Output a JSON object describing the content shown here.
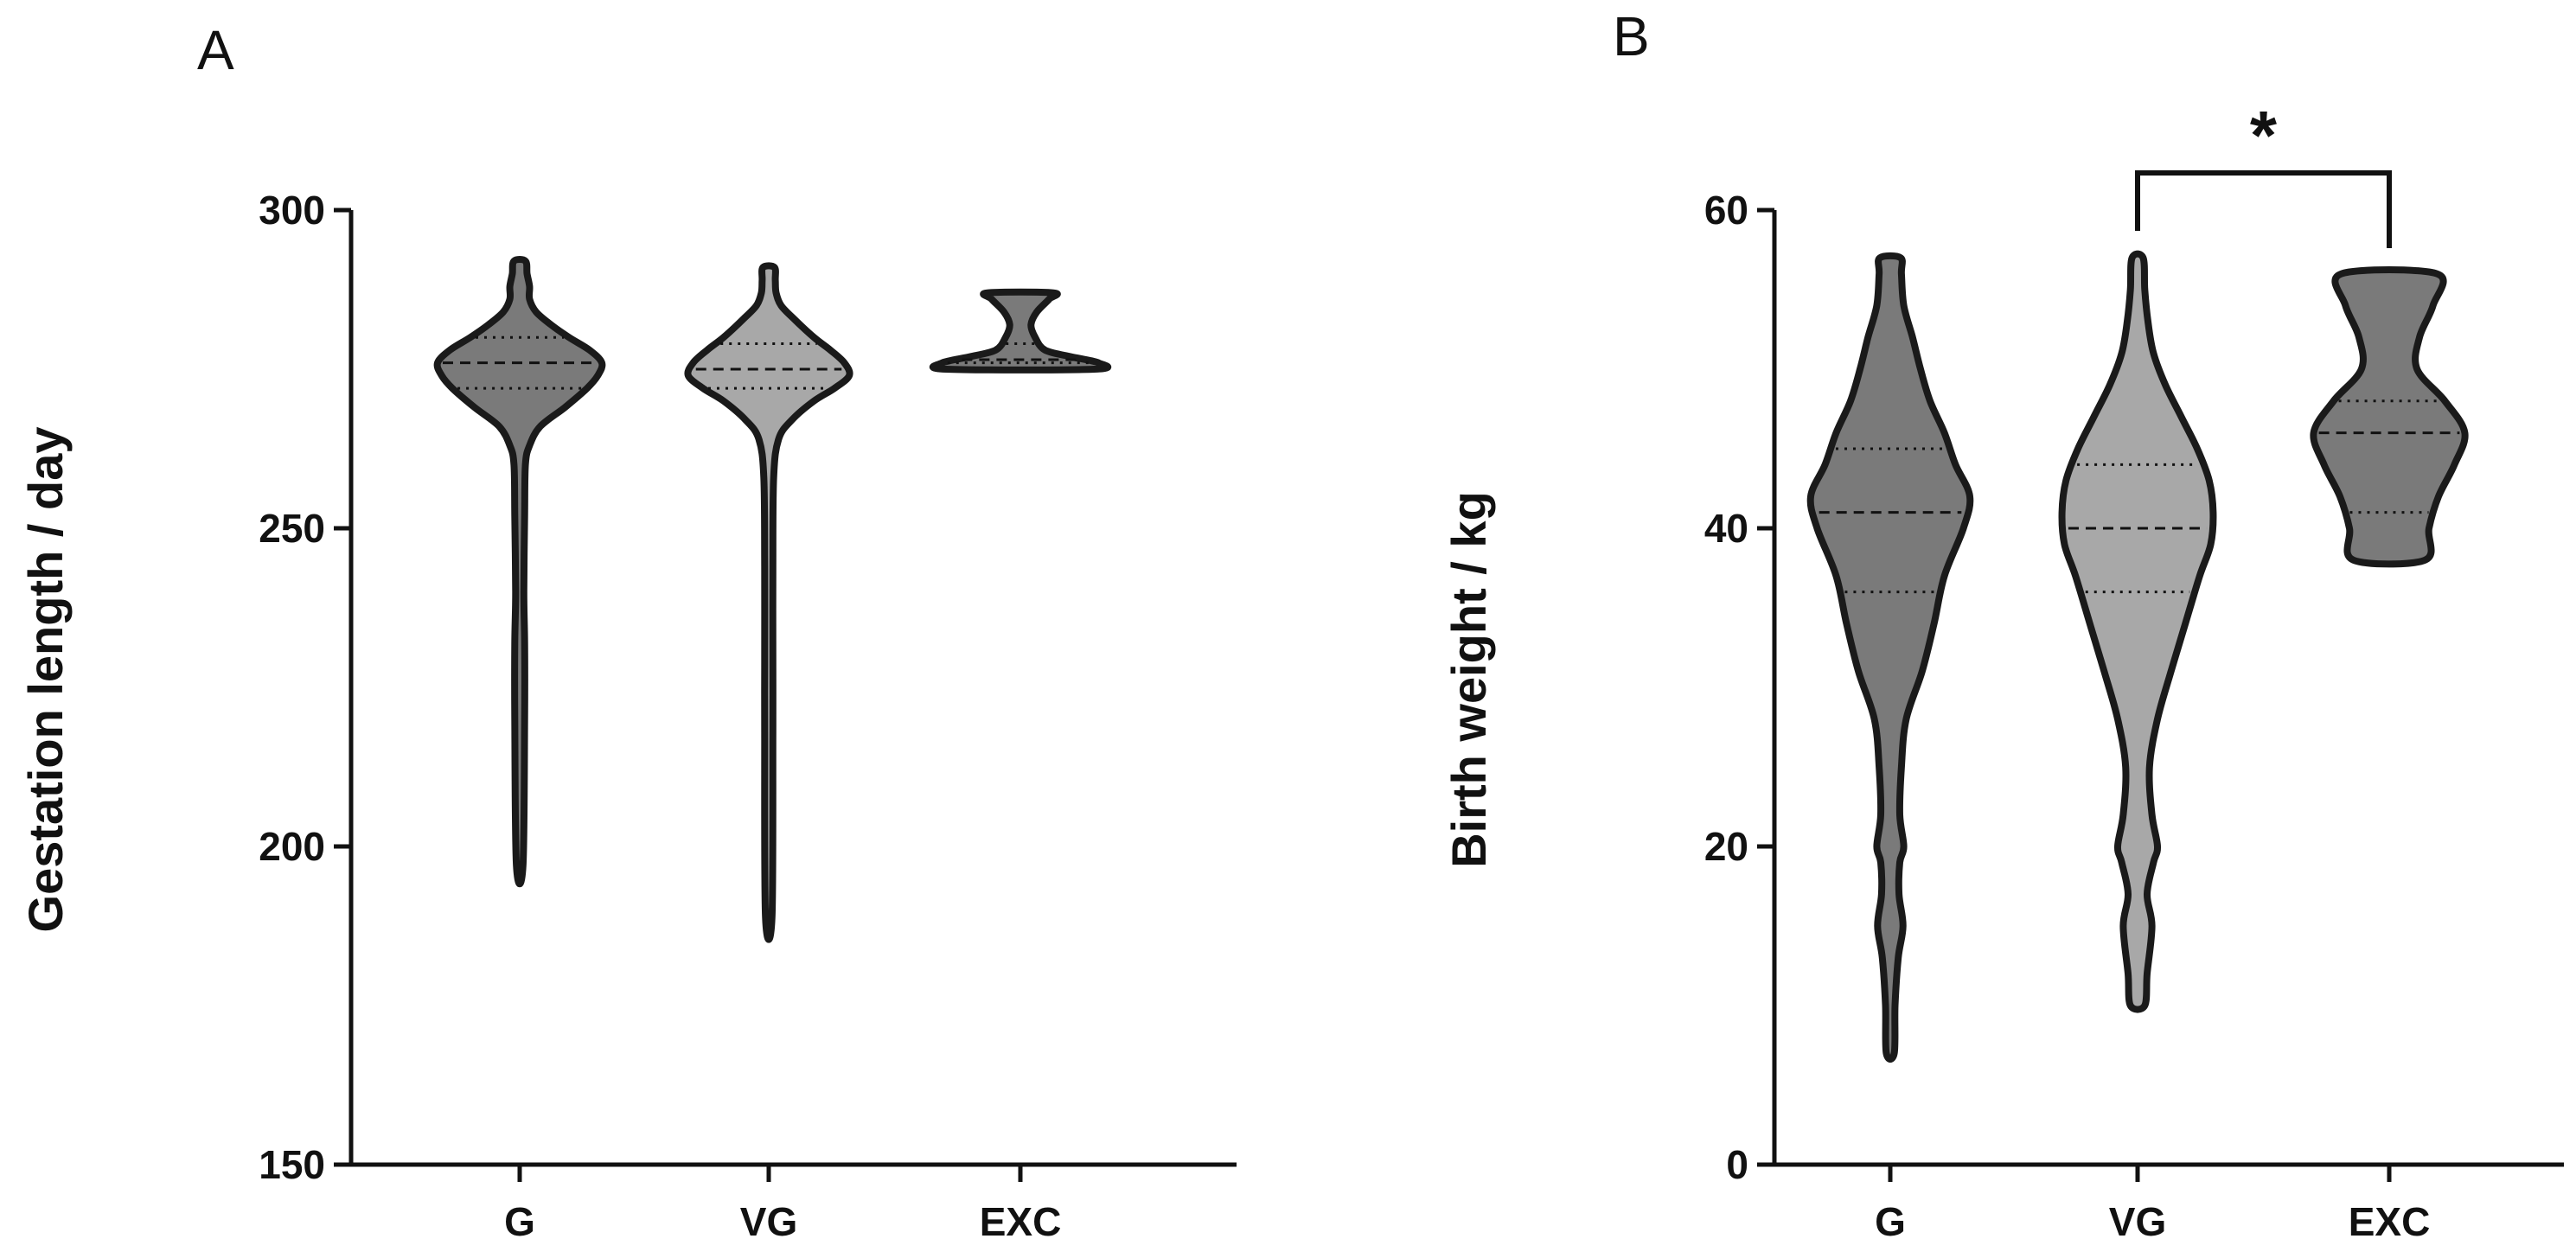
{
  "chart_data": [
    {
      "panel": "A",
      "type": "violin",
      "title": "",
      "xlabel": "",
      "ylabel": "Gestation length / day",
      "ylim": [
        150,
        300
      ],
      "yticks": [
        "150",
        "200",
        "250",
        "300"
      ],
      "ytick_values": [
        150,
        200,
        250,
        300
      ],
      "categories": [
        "G",
        "VG",
        "EXC"
      ],
      "grid": false,
      "series": [
        {
          "name": "G",
          "fill": "#7a7a7a",
          "min": 197,
          "max": 292,
          "median": 276,
          "q1": 272,
          "q3": 280,
          "profile": [
            [
              197,
              0.04
            ],
            [
              220,
              0.06
            ],
            [
              232,
              0.06
            ],
            [
              240,
              0.05
            ],
            [
              252,
              0.06
            ],
            [
              260,
              0.07
            ],
            [
              263,
              0.12
            ],
            [
              266,
              0.25
            ],
            [
              269,
              0.55
            ],
            [
              272,
              0.82
            ],
            [
              274,
              0.95
            ],
            [
              276,
              1.0
            ],
            [
              278,
              0.85
            ],
            [
              280,
              0.6
            ],
            [
              282,
              0.38
            ],
            [
              284,
              0.2
            ],
            [
              286,
              0.12
            ],
            [
              288,
              0.12
            ],
            [
              290,
              0.09
            ],
            [
              292,
              0.07
            ]
          ]
        },
        {
          "name": "VG",
          "fill": "#a8a8a8",
          "min": 189,
          "max": 291,
          "median": 275,
          "q1": 272,
          "q3": 279,
          "profile": [
            [
              189,
              0.04
            ],
            [
              218,
              0.05
            ],
            [
              228,
              0.05
            ],
            [
              244,
              0.05
            ],
            [
              258,
              0.06
            ],
            [
              264,
              0.12
            ],
            [
              267,
              0.28
            ],
            [
              270,
              0.55
            ],
            [
              272,
              0.8
            ],
            [
              274,
              0.98
            ],
            [
              276,
              0.92
            ],
            [
              278,
              0.75
            ],
            [
              280,
              0.55
            ],
            [
              283,
              0.3
            ],
            [
              285,
              0.15
            ],
            [
              287,
              0.09
            ],
            [
              289,
              0.08
            ],
            [
              291,
              0.07
            ]
          ]
        },
        {
          "name": "EXC",
          "fill": "#7a7a7a",
          "min": 275,
          "max": 287,
          "median": 276.5,
          "q1": 276,
          "q3": 279,
          "profile": [
            [
              275,
              0.9
            ],
            [
              276,
              0.95
            ],
            [
              277,
              0.6
            ],
            [
              278,
              0.3
            ],
            [
              280,
              0.18
            ],
            [
              282,
              0.13
            ],
            [
              284,
              0.2
            ],
            [
              286,
              0.35
            ],
            [
              287,
              0.4
            ]
          ]
        }
      ]
    },
    {
      "panel": "B",
      "type": "violin",
      "title": "",
      "xlabel": "",
      "ylabel": "Birth weight / kg",
      "ylim": [
        0,
        60
      ],
      "yticks": [
        "0",
        "20",
        "40",
        "60"
      ],
      "ytick_values": [
        0,
        20,
        40,
        60
      ],
      "categories": [
        "G",
        "VG",
        "EXC"
      ],
      "grid": false,
      "annotations": [
        {
          "type": "significance-bracket",
          "from": "VG",
          "to": "EXC",
          "label": "*"
        }
      ],
      "series": [
        {
          "name": "G",
          "fill": "#7a7a7a",
          "min": 7,
          "max": 57,
          "median": 41,
          "q1": 36,
          "q3": 45,
          "profile": [
            [
              7,
              0.05
            ],
            [
              10,
              0.06
            ],
            [
              13,
              0.1
            ],
            [
              15,
              0.16
            ],
            [
              17,
              0.11
            ],
            [
              19,
              0.12
            ],
            [
              20,
              0.17
            ],
            [
              22,
              0.12
            ],
            [
              25,
              0.14
            ],
            [
              28,
              0.2
            ],
            [
              31,
              0.4
            ],
            [
              34,
              0.55
            ],
            [
              37,
              0.68
            ],
            [
              40,
              0.92
            ],
            [
              42,
              1.0
            ],
            [
              44,
              0.82
            ],
            [
              46,
              0.68
            ],
            [
              48,
              0.5
            ],
            [
              50,
              0.38
            ],
            [
              52,
              0.28
            ],
            [
              54,
              0.17
            ],
            [
              56,
              0.14
            ],
            [
              57,
              0.13
            ]
          ]
        },
        {
          "name": "VG",
          "fill": "#a8a8a8",
          "min": 10,
          "max": 57,
          "median": 40,
          "q1": 36,
          "q3": 44,
          "profile": [
            [
              10,
              0.09
            ],
            [
              12,
              0.12
            ],
            [
              15,
              0.18
            ],
            [
              17,
              0.12
            ],
            [
              19,
              0.2
            ],
            [
              20,
              0.25
            ],
            [
              22,
              0.18
            ],
            [
              25,
              0.15
            ],
            [
              28,
              0.25
            ],
            [
              31,
              0.42
            ],
            [
              34,
              0.6
            ],
            [
              37,
              0.78
            ],
            [
              39,
              0.92
            ],
            [
              41,
              0.95
            ],
            [
              43,
              0.9
            ],
            [
              45,
              0.75
            ],
            [
              47,
              0.55
            ],
            [
              49,
              0.35
            ],
            [
              51,
              0.2
            ],
            [
              53,
              0.13
            ],
            [
              55,
              0.09
            ],
            [
              57,
              0.07
            ]
          ]
        },
        {
          "name": "EXC",
          "fill": "#7a7a7a",
          "min": 38,
          "max": 56,
          "median": 46,
          "q1": 41,
          "q3": 48,
          "profile": [
            [
              38,
              0.45
            ],
            [
              40,
              0.5
            ],
            [
              42,
              0.62
            ],
            [
              44,
              0.82
            ],
            [
              46,
              0.95
            ],
            [
              48,
              0.7
            ],
            [
              50,
              0.35
            ],
            [
              52,
              0.38
            ],
            [
              54,
              0.55
            ],
            [
              56,
              0.6
            ]
          ]
        }
      ]
    }
  ]
}
